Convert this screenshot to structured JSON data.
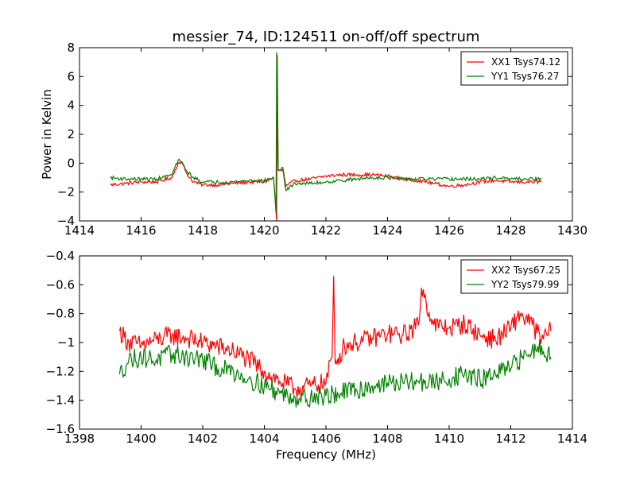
{
  "chart_data": [
    {
      "type": "line",
      "title": "messier_74, ID:124511 on-off/off spectrum",
      "xlabel": "",
      "ylabel": "Power in Kelvin",
      "xlim": [
        1414,
        1430
      ],
      "ylim": [
        -4,
        8
      ],
      "xticks": [
        1414,
        1416,
        1418,
        1420,
        1422,
        1424,
        1426,
        1428,
        1430
      ],
      "yticks": [
        -4,
        -2,
        0,
        2,
        4,
        6,
        8
      ],
      "legend": "top-right",
      "grid": false,
      "series": [
        {
          "name": "XX1 Tsys74.12",
          "color": "#ff0000",
          "x": [
            1415.0,
            1415.5,
            1416.0,
            1416.5,
            1417.0,
            1417.2,
            1417.3,
            1417.5,
            1417.7,
            1418.0,
            1418.5,
            1419.0,
            1419.5,
            1420.0,
            1420.3,
            1420.4,
            1420.42,
            1420.45,
            1420.5,
            1420.6,
            1420.7,
            1421.0,
            1421.5,
            1422.0,
            1422.5,
            1423.0,
            1423.5,
            1424.0,
            1424.5,
            1425.0,
            1425.5,
            1426.0,
            1426.5,
            1427.0,
            1427.5,
            1428.0,
            1428.5,
            1429.0
          ],
          "y": [
            -1.5,
            -1.4,
            -1.3,
            -1.3,
            -1.0,
            0.0,
            0.1,
            -0.8,
            -1.3,
            -1.5,
            -1.5,
            -1.4,
            -1.3,
            -1.3,
            -1.0,
            -4.0,
            7.5,
            -0.5,
            -0.5,
            -0.3,
            -1.6,
            -1.2,
            -1.1,
            -0.9,
            -0.8,
            -0.8,
            -0.8,
            -0.9,
            -1.1,
            -1.2,
            -1.4,
            -1.6,
            -1.5,
            -1.3,
            -1.2,
            -1.3,
            -1.3,
            -1.3
          ]
        },
        {
          "name": "YY1 Tsys76.27",
          "color": "#008000",
          "x": [
            1415.0,
            1415.5,
            1416.0,
            1416.5,
            1417.0,
            1417.2,
            1417.3,
            1417.5,
            1417.7,
            1418.0,
            1418.5,
            1419.0,
            1419.5,
            1420.0,
            1420.3,
            1420.38,
            1420.4,
            1420.45,
            1420.5,
            1420.6,
            1420.7,
            1421.0,
            1421.5,
            1422.0,
            1422.5,
            1423.0,
            1423.5,
            1424.0,
            1424.5,
            1425.0,
            1425.5,
            1426.0,
            1426.5,
            1427.0,
            1427.5,
            1428.0,
            1428.5,
            1429.0
          ],
          "y": [
            -1.0,
            -1.1,
            -1.1,
            -1.1,
            -0.8,
            0.2,
            0.1,
            -0.6,
            -1.0,
            -1.3,
            -1.3,
            -1.3,
            -1.2,
            -1.2,
            -1.0,
            -3.5,
            7.7,
            -0.4,
            -0.5,
            -0.4,
            -1.9,
            -1.4,
            -1.4,
            -1.3,
            -1.2,
            -1.1,
            -1.0,
            -1.0,
            -1.1,
            -1.1,
            -1.1,
            -1.1,
            -1.1,
            -1.1,
            -1.0,
            -1.1,
            -1.1,
            -1.1
          ]
        }
      ]
    },
    {
      "type": "line",
      "title": "",
      "xlabel": "Frequency (MHz)",
      "ylabel": "",
      "xlim": [
        1398,
        1414
      ],
      "ylim": [
        -1.6,
        -0.4
      ],
      "xticks": [
        1398,
        1400,
        1402,
        1404,
        1406,
        1408,
        1410,
        1412,
        1414
      ],
      "yticks": [
        -1.6,
        -1.4,
        -1.2,
        -1.0,
        -0.8,
        -0.6,
        -0.4
      ],
      "legend": "top-right",
      "grid": false,
      "series": [
        {
          "name": "XX2 Tsys67.25",
          "color": "#ff0000",
          "x": [
            1399.3,
            1399.6,
            1400.0,
            1400.5,
            1401.0,
            1401.5,
            1402.0,
            1402.5,
            1403.0,
            1403.5,
            1404.0,
            1404.5,
            1405.0,
            1405.5,
            1406.0,
            1406.2,
            1406.25,
            1406.3,
            1406.6,
            1407.0,
            1407.5,
            1408.0,
            1408.5,
            1409.0,
            1409.1,
            1409.5,
            1410.0,
            1410.5,
            1411.0,
            1411.5,
            1412.0,
            1412.3,
            1412.7,
            1413.0,
            1413.3
          ],
          "y": [
            -0.92,
            -1.0,
            -1.02,
            -0.98,
            -0.95,
            -0.97,
            -1.0,
            -1.03,
            -1.06,
            -1.12,
            -1.2,
            -1.27,
            -1.32,
            -1.3,
            -1.28,
            -1.1,
            -0.54,
            -1.15,
            -1.02,
            -1.0,
            -0.97,
            -0.94,
            -0.95,
            -0.88,
            -0.62,
            -0.88,
            -0.9,
            -0.87,
            -0.95,
            -0.98,
            -0.9,
            -0.8,
            -0.88,
            -0.98,
            -0.92
          ]
        },
        {
          "name": "YY2 Tsys79.99",
          "color": "#008000",
          "x": [
            1399.3,
            1399.6,
            1400.0,
            1400.5,
            1401.0,
            1401.5,
            1402.0,
            1402.5,
            1403.0,
            1403.5,
            1404.0,
            1404.5,
            1405.0,
            1405.5,
            1406.0,
            1406.5,
            1407.0,
            1407.5,
            1408.0,
            1408.5,
            1409.0,
            1409.5,
            1410.0,
            1410.5,
            1411.0,
            1411.5,
            1412.0,
            1412.5,
            1413.0,
            1413.3
          ],
          "y": [
            -1.22,
            -1.12,
            -1.1,
            -1.12,
            -1.08,
            -1.1,
            -1.12,
            -1.18,
            -1.2,
            -1.25,
            -1.3,
            -1.35,
            -1.38,
            -1.38,
            -1.37,
            -1.35,
            -1.33,
            -1.3,
            -1.28,
            -1.28,
            -1.27,
            -1.28,
            -1.25,
            -1.22,
            -1.26,
            -1.22,
            -1.18,
            -1.08,
            -1.02,
            -1.1
          ]
        }
      ]
    }
  ]
}
